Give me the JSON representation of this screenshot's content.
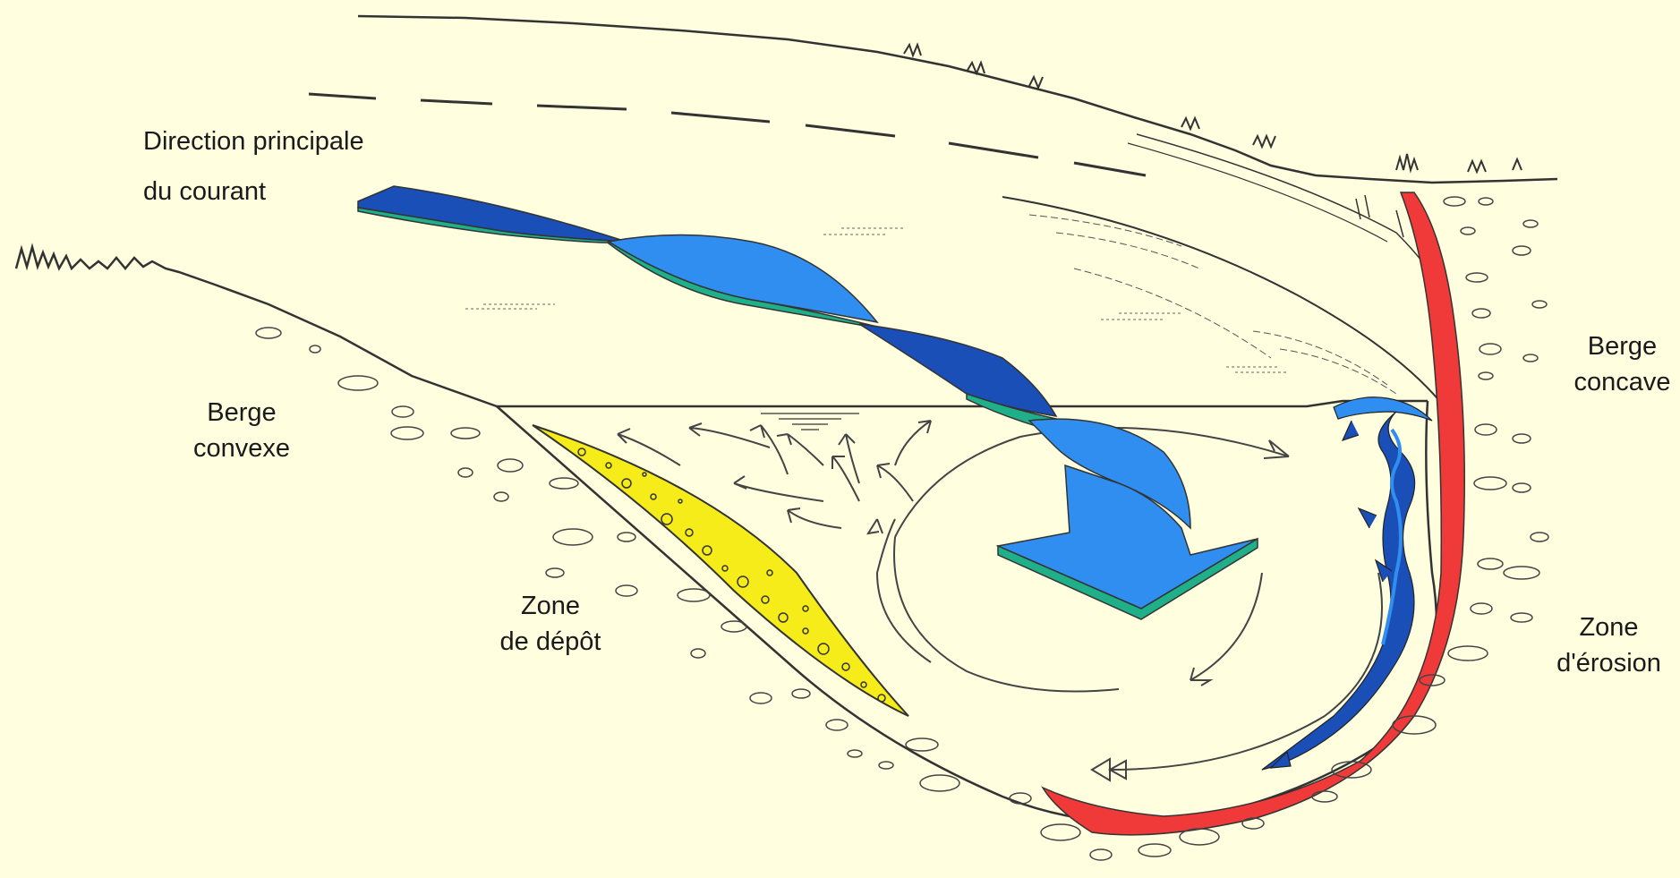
{
  "labels": {
    "main_current": {
      "line1": "Direction principale",
      "line2": "du courant"
    },
    "convex_bank": {
      "line1": "Berge",
      "line2": "convexe"
    },
    "deposit_zone": {
      "line1": "Zone",
      "line2": "de dépôt"
    },
    "concave_bank": {
      "line1": "Berge",
      "line2": "concave"
    },
    "erosion_zone": {
      "line1": "Zone",
      "line2": "d'érosion"
    }
  },
  "colors": {
    "background": "#ffffe0",
    "outline": "#333333",
    "main_current_dark": "#1a4fb8",
    "main_current_light": "#2f8ef0",
    "current_edge": "#1fb08a",
    "deposit": "#f5ec1a",
    "erosion": "#f03a3a",
    "secondary_flow": "#2a6fd8"
  },
  "icons": {
    "flow_arrows": "thin-outline-arrow",
    "main_arrow": "twisted-ribbon-arrow",
    "pebbles": "oval-outline"
  }
}
